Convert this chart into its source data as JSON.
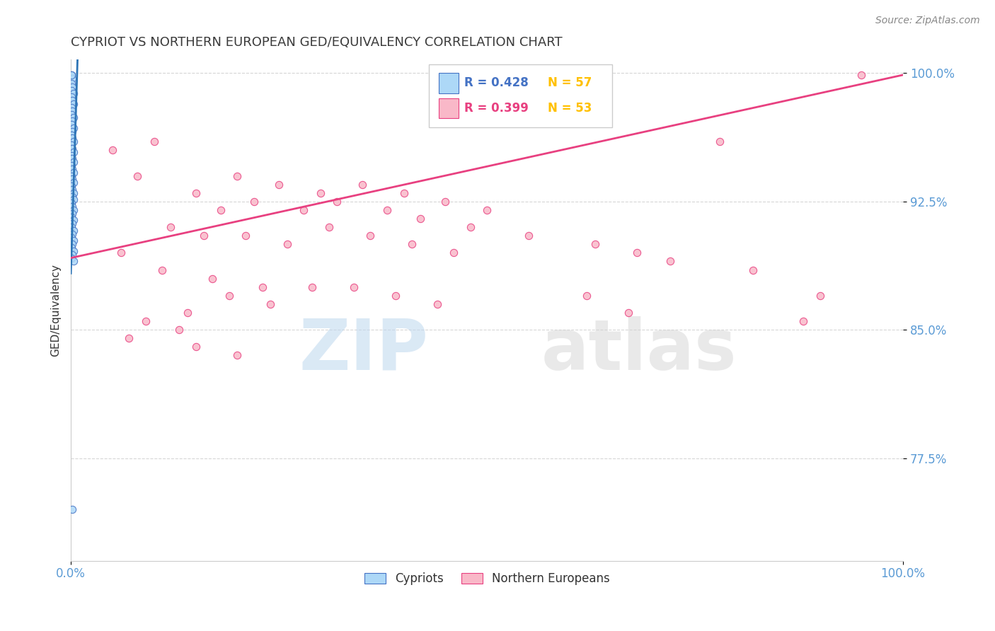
{
  "title": "CYPRIOT VS NORTHERN EUROPEAN GED/EQUIVALENCY CORRELATION CHART",
  "source_text": "Source: ZipAtlas.com",
  "ylabel": "GED/Equivalency",
  "watermark_zip": "ZIP",
  "watermark_atlas": "atlas",
  "legend": {
    "blue_label": "Cypriots",
    "pink_label": "Northern Europeans",
    "blue_r": "R = 0.428",
    "blue_n": "N = 57",
    "pink_r": "R = 0.399",
    "pink_n": "N = 53"
  },
  "xlim": [
    0.0,
    1.0
  ],
  "ylim": [
    0.715,
    1.008
  ],
  "yticks": [
    0.775,
    0.85,
    0.925,
    1.0
  ],
  "ytick_labels": [
    "77.5%",
    "85.0%",
    "92.5%",
    "100.0%"
  ],
  "xtick_labels": [
    "0.0%",
    "100.0%"
  ],
  "xticks": [
    0.0,
    1.0
  ],
  "title_color": "#3B3B3B",
  "tick_color": "#5B9BD5",
  "grid_color": "#BBBBBB",
  "blue_face_color": "#ADD8F7",
  "blue_edge_color": "#4472C4",
  "pink_face_color": "#F9B8C8",
  "pink_edge_color": "#E84080",
  "blue_line_color": "#2E75B6",
  "pink_line_color": "#E84080",
  "blue_points": [
    [
      0.001,
      0.999
    ],
    [
      0.002,
      0.997
    ],
    [
      0.001,
      0.994
    ],
    [
      0.002,
      0.992
    ],
    [
      0.001,
      0.99
    ],
    [
      0.003,
      0.988
    ],
    [
      0.001,
      0.986
    ],
    [
      0.002,
      0.984
    ],
    [
      0.003,
      0.982
    ],
    [
      0.001,
      0.98
    ],
    [
      0.002,
      0.978
    ],
    [
      0.001,
      0.976
    ],
    [
      0.003,
      0.974
    ],
    [
      0.002,
      0.972
    ],
    [
      0.001,
      0.97
    ],
    [
      0.003,
      0.968
    ],
    [
      0.002,
      0.966
    ],
    [
      0.001,
      0.964
    ],
    [
      0.002,
      0.962
    ],
    [
      0.003,
      0.96
    ],
    [
      0.001,
      0.958
    ],
    [
      0.002,
      0.956
    ],
    [
      0.003,
      0.954
    ],
    [
      0.001,
      0.952
    ],
    [
      0.002,
      0.95
    ],
    [
      0.003,
      0.948
    ],
    [
      0.001,
      0.946
    ],
    [
      0.002,
      0.944
    ],
    [
      0.003,
      0.942
    ],
    [
      0.001,
      0.94
    ],
    [
      0.002,
      0.938
    ],
    [
      0.003,
      0.936
    ],
    [
      0.001,
      0.934
    ],
    [
      0.002,
      0.932
    ],
    [
      0.003,
      0.93
    ],
    [
      0.002,
      0.928
    ],
    [
      0.003,
      0.926
    ],
    [
      0.001,
      0.924
    ],
    [
      0.002,
      0.922
    ],
    [
      0.003,
      0.92
    ],
    [
      0.002,
      0.918
    ],
    [
      0.001,
      0.916
    ],
    [
      0.003,
      0.914
    ],
    [
      0.002,
      0.912
    ],
    [
      0.001,
      0.91
    ],
    [
      0.003,
      0.908
    ],
    [
      0.002,
      0.906
    ],
    [
      0.001,
      0.904
    ],
    [
      0.003,
      0.902
    ],
    [
      0.002,
      0.9
    ],
    [
      0.001,
      0.898
    ],
    [
      0.003,
      0.896
    ],
    [
      0.002,
      0.894
    ],
    [
      0.001,
      0.892
    ],
    [
      0.003,
      0.89
    ],
    [
      0.002,
      0.745
    ],
    [
      0.001,
      0.999
    ]
  ],
  "pink_points": [
    [
      0.05,
      0.955
    ],
    [
      0.1,
      0.96
    ],
    [
      0.08,
      0.94
    ],
    [
      0.15,
      0.93
    ],
    [
      0.2,
      0.94
    ],
    [
      0.18,
      0.92
    ],
    [
      0.25,
      0.935
    ],
    [
      0.22,
      0.925
    ],
    [
      0.3,
      0.93
    ],
    [
      0.28,
      0.92
    ],
    [
      0.35,
      0.935
    ],
    [
      0.32,
      0.925
    ],
    [
      0.38,
      0.92
    ],
    [
      0.4,
      0.93
    ],
    [
      0.42,
      0.915
    ],
    [
      0.45,
      0.925
    ],
    [
      0.48,
      0.91
    ],
    [
      0.5,
      0.92
    ],
    [
      0.12,
      0.91
    ],
    [
      0.16,
      0.905
    ],
    [
      0.21,
      0.905
    ],
    [
      0.26,
      0.9
    ],
    [
      0.31,
      0.91
    ],
    [
      0.36,
      0.905
    ],
    [
      0.41,
      0.9
    ],
    [
      0.46,
      0.895
    ],
    [
      0.55,
      0.905
    ],
    [
      0.06,
      0.895
    ],
    [
      0.11,
      0.885
    ],
    [
      0.17,
      0.88
    ],
    [
      0.23,
      0.875
    ],
    [
      0.29,
      0.875
    ],
    [
      0.34,
      0.875
    ],
    [
      0.39,
      0.87
    ],
    [
      0.44,
      0.865
    ],
    [
      0.14,
      0.86
    ],
    [
      0.19,
      0.87
    ],
    [
      0.24,
      0.865
    ],
    [
      0.09,
      0.855
    ],
    [
      0.13,
      0.85
    ],
    [
      0.07,
      0.845
    ],
    [
      0.15,
      0.84
    ],
    [
      0.2,
      0.835
    ],
    [
      0.63,
      0.9
    ],
    [
      0.68,
      0.895
    ],
    [
      0.72,
      0.89
    ],
    [
      0.62,
      0.87
    ],
    [
      0.67,
      0.86
    ],
    [
      0.78,
      0.96
    ],
    [
      0.82,
      0.885
    ],
    [
      0.9,
      0.87
    ],
    [
      0.88,
      0.855
    ],
    [
      0.95,
      0.999
    ]
  ],
  "blue_line_x": [
    0.0,
    0.008
  ],
  "blue_line_y": [
    0.883,
    1.008
  ],
  "pink_line_x": [
    0.0,
    1.0
  ],
  "pink_line_y": [
    0.892,
    0.999
  ]
}
